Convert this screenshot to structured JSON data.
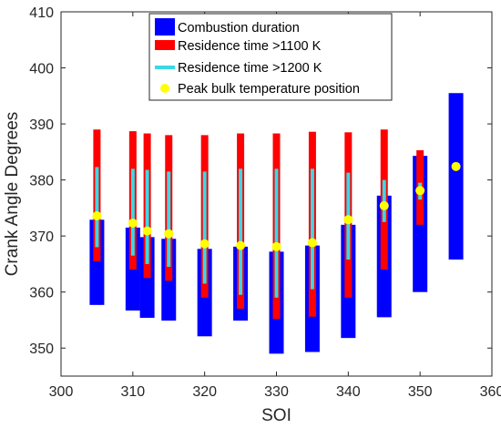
{
  "chart_data": {
    "type": "bar",
    "xlabel": "SOI",
    "ylabel": "Crank Angle Degrees",
    "xlim": [
      300,
      360
    ],
    "ylim": [
      345,
      410
    ],
    "xticks": [
      300,
      310,
      320,
      330,
      340,
      350,
      360
    ],
    "yticks": [
      350,
      360,
      370,
      380,
      390,
      400,
      410
    ],
    "grid": false,
    "legend_position": "top-center",
    "colors": {
      "combustion": "#0000ff",
      "residence_1100": "#ff0000",
      "residence_1200": "#38d9e6",
      "peak": "#ffff00"
    },
    "series": [
      {
        "name": "Combustion duration",
        "kind": "range-bar",
        "x": [
          305,
          310,
          312,
          315,
          320,
          325,
          330,
          335,
          340,
          345,
          350,
          355
        ],
        "start": [
          357.7,
          356.7,
          355.4,
          354.9,
          352.1,
          354.9,
          349.0,
          349.3,
          351.8,
          355.5,
          360.0,
          365.8
        ],
        "end": [
          372.9,
          371.5,
          369.8,
          369.5,
          367.7,
          368.1,
          367.2,
          368.3,
          372.0,
          377.2,
          384.3,
          395.5
        ]
      },
      {
        "name": "Residence time >1100 K",
        "kind": "range-bar",
        "x": [
          305,
          310,
          312,
          315,
          320,
          325,
          330,
          335,
          340,
          345,
          350
        ],
        "start": [
          365.5,
          364.0,
          362.5,
          362.0,
          359.0,
          357.0,
          355.2,
          355.6,
          359.0,
          364.0,
          372.0
        ],
        "end": [
          389.0,
          388.7,
          388.3,
          388.0,
          388.0,
          388.3,
          388.3,
          388.6,
          388.5,
          389.0,
          385.3
        ]
      },
      {
        "name": "Residence time >1200 K",
        "kind": "range-bar",
        "x": [
          305,
          310,
          312,
          315,
          320,
          325,
          330,
          335,
          340,
          345,
          350
        ],
        "start": [
          368.0,
          366.5,
          365.0,
          364.5,
          361.5,
          359.5,
          359.0,
          360.5,
          365.8,
          372.5,
          376.5
        ],
        "end": [
          382.3,
          382.0,
          381.8,
          381.5,
          381.5,
          382.0,
          382.0,
          382.0,
          381.3,
          380.0,
          379.5
        ]
      },
      {
        "name": "Peak bulk temperature position",
        "kind": "point",
        "x": [
          305,
          310,
          312,
          315,
          320,
          325,
          330,
          335,
          340,
          345,
          350,
          355
        ],
        "y": [
          373.6,
          372.3,
          370.9,
          370.4,
          368.6,
          368.3,
          368.1,
          368.8,
          372.9,
          375.4,
          378.1,
          382.4
        ]
      }
    ]
  }
}
